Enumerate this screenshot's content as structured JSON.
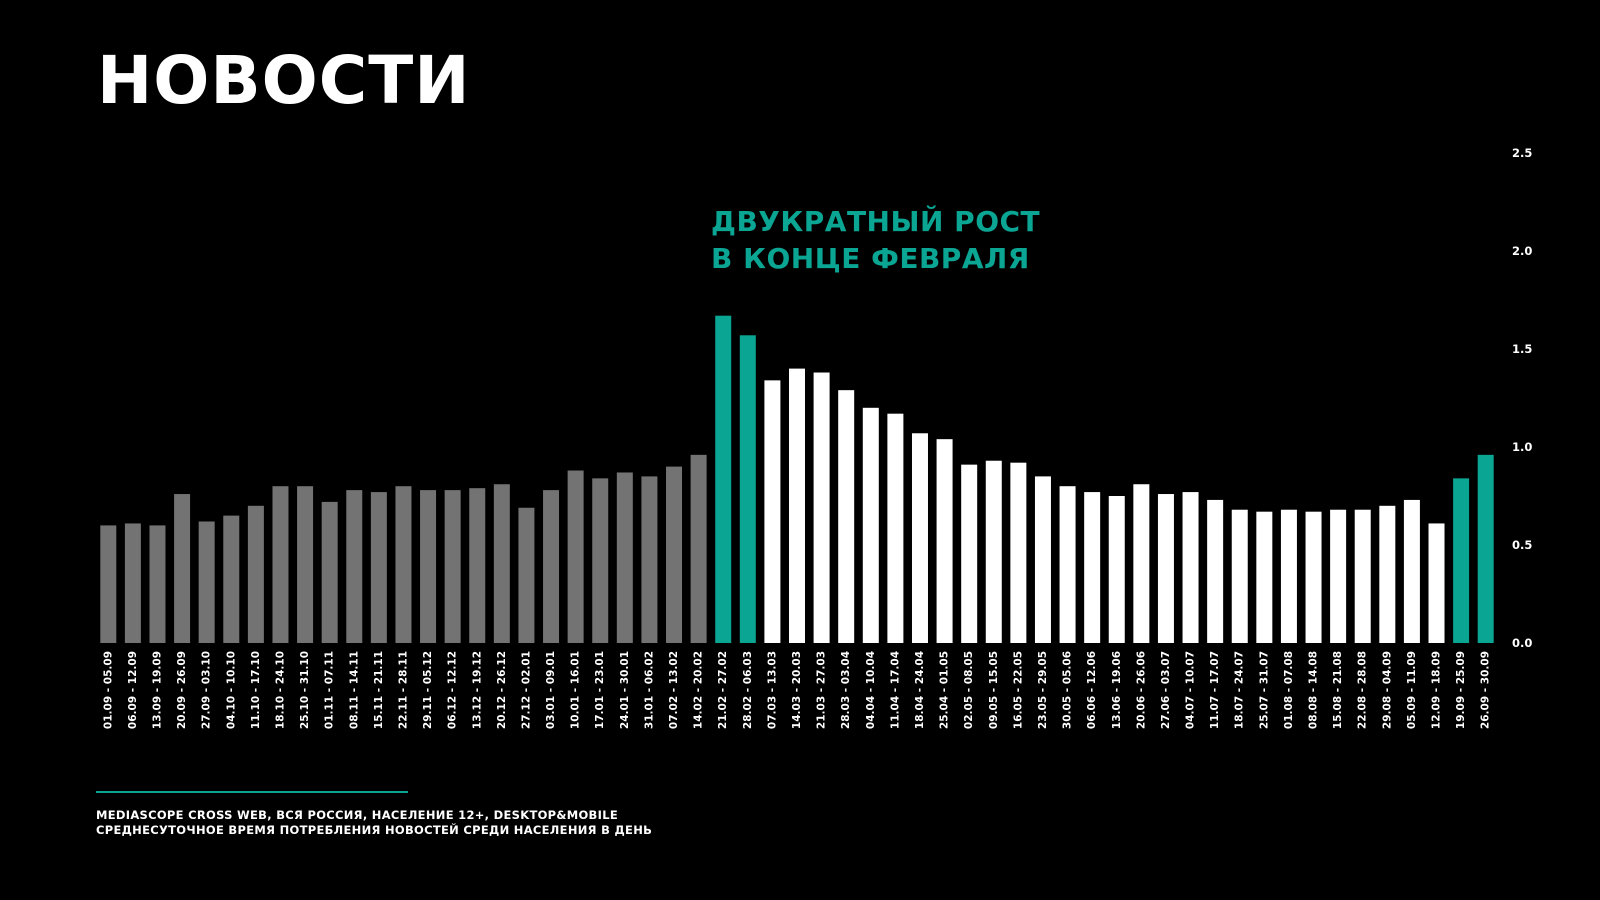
{
  "title": "НОВОСТИ",
  "annotation": {
    "line1": "ДВУКРАТНЫЙ РОСТ",
    "line2": "В КОНЦЕ ФЕВРАЛЯ"
  },
  "source": {
    "line1": "MEDIASCOPE CROSS WEB, ВСЯ РОССИЯ, НАСЕЛЕНИЕ 12+, DESKTOP&MOBILE",
    "line2": "СРЕДНЕСУТОЧНОЕ ВРЕМЯ ПОТРЕБЛЕНИЯ НОВОСТЕЙ СРЕДИ НАСЕЛЕНИЯ В ДЕНЬ"
  },
  "colors": {
    "background": "#000000",
    "accent": "#0ba593",
    "bar_past": "#737373",
    "bar_current": "#ffffff",
    "text": "#ffffff"
  },
  "chart_data": {
    "type": "bar",
    "title": "НОВОСТИ",
    "xlabel": "",
    "ylabel": "",
    "ylim": [
      0,
      2.5
    ],
    "yticks": [
      0.0,
      0.5,
      1.0,
      1.5,
      2.0,
      2.5
    ],
    "ytick_labels": [
      "0.0",
      "0.5",
      "1.0",
      "1.5",
      "2.0",
      "2.5"
    ],
    "y_axis_position": "right",
    "grid": false,
    "legend": "none",
    "categories": [
      "01.09 - 05.09",
      "06.09 - 12.09",
      "13.09 - 19.09",
      "20.09 - 26.09",
      "27.09 - 03.10",
      "04.10 - 10.10",
      "11.10 - 17.10",
      "18.10 - 24.10",
      "25.10 - 31.10",
      "01.11 - 07.11",
      "08.11 - 14.11",
      "15.11 - 21.11",
      "22.11 - 28.11",
      "29.11 - 05.12",
      "06.12 - 12.12",
      "13.12 - 19.12",
      "20.12 - 26.12",
      "27.12 - 02.01",
      "03.01 - 09.01",
      "10.01 - 16.01",
      "17.01 - 23.01",
      "24.01 - 30.01",
      "31.01 - 06.02",
      "07.02 - 13.02",
      "14.02 - 20.02",
      "21.02 - 27.02",
      "28.02 - 06.03",
      "07.03 - 13.03",
      "14.03 - 20.03",
      "21.03 - 27.03",
      "28.03 - 03.04",
      "04.04 - 10.04",
      "11.04 - 17.04",
      "18.04 - 24.04",
      "25.04 - 01.05",
      "02.05 - 08.05",
      "09.05 - 15.05",
      "16.05 - 22.05",
      "23.05 - 29.05",
      "30.05 - 05.06",
      "06.06 - 12.06",
      "13.06 - 19.06",
      "20.06 - 26.06",
      "27.06 - 03.07",
      "04.07 - 10.07",
      "11.07 - 17.07",
      "18.07 - 24.07",
      "25.07 - 31.07",
      "01.08 - 07.08",
      "08.08 - 14.08",
      "15.08 - 21.08",
      "22.08 - 28.08",
      "29.08 - 04.09",
      "05.09 - 11.09",
      "12.09 - 18.09",
      "19.09 - 25.09",
      "26.09 - 30.09"
    ],
    "values": [
      0.6,
      0.61,
      0.6,
      0.76,
      0.62,
      0.65,
      0.7,
      0.8,
      0.8,
      0.72,
      0.78,
      0.77,
      0.8,
      0.78,
      0.78,
      0.79,
      0.81,
      0.69,
      0.78,
      0.88,
      0.84,
      0.87,
      0.85,
      0.9,
      0.96,
      1.67,
      1.57,
      1.34,
      1.4,
      1.38,
      1.29,
      1.2,
      1.17,
      1.07,
      1.04,
      0.91,
      0.93,
      0.92,
      0.85,
      0.8,
      0.77,
      0.75,
      0.81,
      0.76,
      0.77,
      0.73,
      0.68,
      0.67,
      0.68,
      0.67,
      0.68,
      0.68,
      0.7,
      0.73,
      0.61,
      0.84,
      0.96
    ],
    "bar_groups": [
      "past",
      "past",
      "past",
      "past",
      "past",
      "past",
      "past",
      "past",
      "past",
      "past",
      "past",
      "past",
      "past",
      "past",
      "past",
      "past",
      "past",
      "past",
      "past",
      "past",
      "past",
      "past",
      "past",
      "past",
      "past",
      "accent",
      "accent",
      "current",
      "current",
      "current",
      "current",
      "current",
      "current",
      "current",
      "current",
      "current",
      "current",
      "current",
      "current",
      "current",
      "current",
      "current",
      "current",
      "current",
      "current",
      "current",
      "current",
      "current",
      "current",
      "current",
      "current",
      "current",
      "current",
      "current",
      "current",
      "accent",
      "accent"
    ]
  }
}
